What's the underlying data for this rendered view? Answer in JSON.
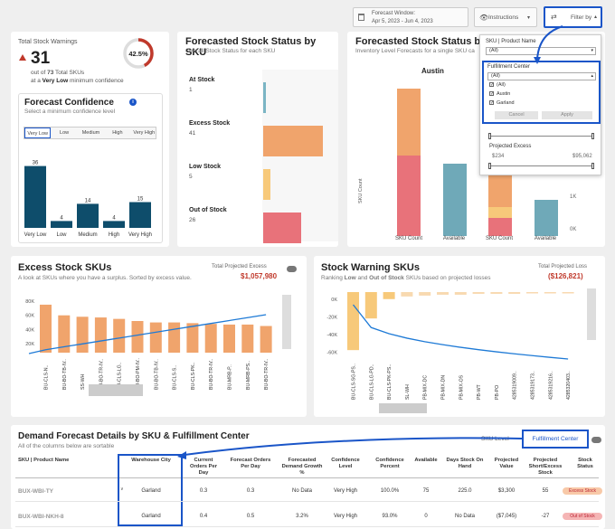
{
  "header": {
    "forecast_window_label": "Forecast Window:",
    "forecast_window_value": "Apr 5, 2023 - Jun 4, 2023",
    "instructions_label": "Instructions",
    "filter_label": "Filter by"
  },
  "warnings": {
    "title": "Total Stock Warnings",
    "count": "31",
    "out_of_prefix": "out of",
    "total": "73",
    "total_suffix": "Total SKUs",
    "at_a": "at a",
    "very_low": "Very Low",
    "min_conf": "minimum confidence",
    "percent": "42.5%",
    "fraction": 0.425
  },
  "confidence": {
    "title": "Forecast Confidence",
    "info_icon": "i",
    "subtitle": "Select a minimum confidence level",
    "segments": [
      "Very Low",
      "Low",
      "Medium",
      "High",
      "Very High"
    ],
    "bars": [
      {
        "label": "Very Low",
        "value": 36
      },
      {
        "label": "Low",
        "value": 4
      },
      {
        "label": "Medium",
        "value": 14
      },
      {
        "label": "High",
        "value": 4
      },
      {
        "label": "Very High",
        "value": 15
      }
    ],
    "color": "#0e4d6b"
  },
  "status_by_sku": {
    "title": "Forecasted Stock Status by SKU",
    "subtitle": "Overall Stock Status for each SKU",
    "rows": [
      {
        "label": "At Stock",
        "value": 1,
        "value_text": "1",
        "color": "#7bb5c4"
      },
      {
        "label": "Excess Stock",
        "value": 41,
        "value_text": "41",
        "color": "#f0a46c"
      },
      {
        "label": "Low Stock",
        "value": 5,
        "value_text": "5",
        "color": "#f7c97a"
      },
      {
        "label": "Out of Stock",
        "value": 26,
        "value_text": "26",
        "color": "#e8727a"
      }
    ]
  },
  "status_by_fc": {
    "title": "Forecasted Stock Status by F",
    "subtitle": "Inventory Level Forecasts for a single SKU ca",
    "facet": "Austin",
    "y_label": "SKU Count",
    "x_labels": [
      "SKU Count",
      "Available",
      "SKU Count",
      "Available"
    ],
    "right_ticks": [
      "1K",
      "0K"
    ],
    "c1_left": [
      "60",
      "40",
      "20",
      "0"
    ]
  },
  "filter_panel": {
    "sku_label": "SKU | Product Name",
    "sku_value": "(All)",
    "fc_label": "Fulfillment Center",
    "fc_value": "(All)",
    "options": [
      "(All)",
      "Austin",
      "Garland"
    ],
    "cancel": "Cancel",
    "apply": "Apply",
    "proj_excess_label": "Projected Excess",
    "proj_excess_min": "$234",
    "proj_excess_max": "$95,062"
  },
  "excess": {
    "title": "Excess Stock SKUs",
    "subtitle": "A look at SKUs where you have a surplus. Sorted by excess value.",
    "total_label": "Total Projected Excess",
    "total_value": "$1,057,980",
    "y_ticks": [
      "80K",
      "60K",
      "40K",
      "20K"
    ],
    "skus": [
      "BU-CLS-N..",
      "BU-BO-TB-IV..",
      "SS-WH",
      "BU-BO-TR-IV..",
      "BU-CLS-LG..",
      "BU-BO-PM-IV..",
      "BU-BO-TB-IV..",
      "BU-CLS-S..",
      "BU-CLS-PK..",
      "BU-BO-TR-IV..",
      "BU-MRB-P..",
      "BU-MRB-PS..",
      "BU-BO-TR-IV.."
    ],
    "values": [
      75,
      60,
      58,
      57,
      55,
      52,
      50,
      50,
      49,
      48,
      47,
      47,
      45
    ]
  },
  "warning_skus": {
    "title": "Stock Warning SKUs",
    "subtitle_a": "Ranking",
    "subtitle_low": "Low",
    "subtitle_and": "and",
    "subtitle_out": "Out of Stock",
    "subtitle_b": "SKUs based on projected losses",
    "total_label": "Total Projected Loss",
    "total_value": "($126,821)",
    "y_ticks": [
      "0K",
      "-20K",
      "-40K",
      "-60K"
    ],
    "skus": [
      "BU-CLS-SG-PS..",
      "BU-CLS-LG-PD..",
      "BU-CLS-PK-PS..",
      "SL-WH",
      "PB-MIX-DC",
      "PB-MIX-DN",
      "PB-MIX-OS",
      "PB-WT",
      "PB-PO",
      "4285319009..",
      "4285319173..",
      "4285319216..",
      "4285320403.."
    ],
    "values": [
      -66,
      -30,
      -8,
      -5,
      -4,
      -3,
      -3,
      -2,
      -2,
      -2,
      -1,
      -1,
      -1
    ]
  },
  "details": {
    "title": "Demand Forecast Details by SKU & Fulfillment Center",
    "subtitle": "All of the columns below are sortable",
    "tab_sku": "SKU Level",
    "tab_fc": "Fulfillment Center",
    "columns": [
      "SKU | Product Name",
      "Warehouse City",
      "Current Orders Per Day",
      "Forecast Orders Per Day",
      "Forecasted Demand Growth %",
      "Confidence Level",
      "Confidence Percent",
      "Available",
      "Days Stock On Hand",
      "Projected Value",
      "Projected Short/Excess Stock",
      "Stock Status"
    ],
    "rows": [
      {
        "sku": "BUX-WBI-TY",
        "city": "Garland",
        "cur": "0.3",
        "fc": "0.3",
        "growth": "No Data",
        "conf": "Very High",
        "pct": "100.0%",
        "avail": "75",
        "days": "225.0",
        "value": "$3,300",
        "short": "55",
        "status": "Excess Stock",
        "status_color": "#f8c9a8"
      },
      {
        "sku": "BUX-WBI-NKH-8",
        "city": "Garland",
        "cur": "0.4",
        "fc": "0.5",
        "growth": "3.2%",
        "conf": "Very High",
        "pct": "93.0%",
        "avail": "0",
        "days": "No Data",
        "value": "($7,045)",
        "short": "-27",
        "status": "Out of Stock",
        "status_color": "#f5b5b5"
      }
    ]
  },
  "colors": {
    "accent": "#1a55c8",
    "excess_bar": "#f0a46c",
    "warning_bar": "#f7c97a",
    "line": "#1e7ad6",
    "red": "#c0392b"
  }
}
